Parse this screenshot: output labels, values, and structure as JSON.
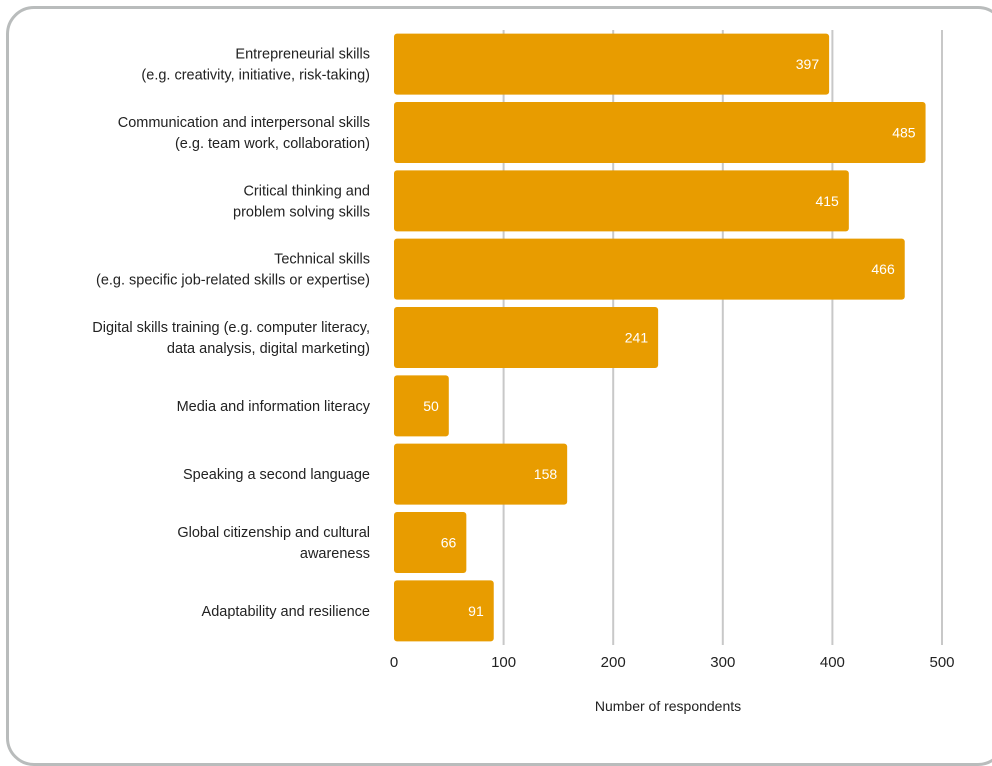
{
  "chart_data": {
    "type": "bar",
    "orientation": "horizontal",
    "categories": [
      [
        "Entrepreneurial skills",
        "(e.g. creativity, initiative, risk-taking)"
      ],
      [
        "Communication and interpersonal skills",
        "(e.g.  team work, collaboration)"
      ],
      [
        "Critical thinking and",
        "problem solving skills"
      ],
      [
        "Technical skills",
        "(e.g. specific job-related skills or expertise)"
      ],
      [
        "Digital skills training (e.g. computer literacy,",
        "data analysis, digital marketing)"
      ],
      [
        "Media and information literacy"
      ],
      [
        "Speaking a second language"
      ],
      [
        "Global citizenship and cultural",
        "awareness"
      ],
      [
        "Adaptability and resilience"
      ]
    ],
    "values": [
      397,
      485,
      415,
      466,
      241,
      50,
      158,
      66,
      91
    ],
    "data_labels": [
      "397",
      "485",
      "415",
      "466",
      "241",
      "50",
      "158",
      "66",
      "91"
    ],
    "xlabel": "Number of respondents",
    "xlim": [
      0,
      500
    ],
    "x_ticks": [
      0,
      100,
      200,
      300,
      400,
      500
    ],
    "x_tick_labels": [
      "0",
      "100",
      "200",
      "300",
      "400",
      "500"
    ],
    "grid": "vertical",
    "colors": {
      "bar": "#E89C00",
      "grid": "#c8c8c8",
      "frame": "#b9bcbc",
      "label": "#ffffff"
    }
  }
}
